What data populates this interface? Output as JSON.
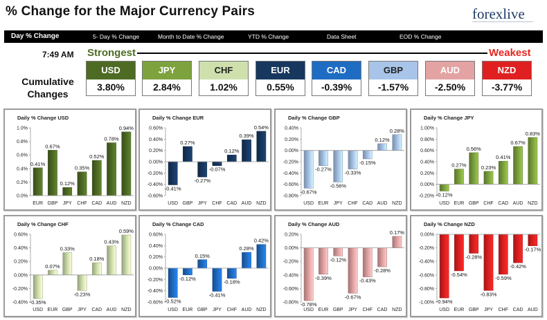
{
  "header": {
    "title": "% Change for the Major Currency Pairs",
    "logo_text": "forexlive"
  },
  "tabs": [
    {
      "label": "Day % Change",
      "active": true
    },
    {
      "label": "5- Day % Change",
      "active": false
    },
    {
      "label": "Month to Date % Change",
      "active": false
    },
    {
      "label": "YTD % Change",
      "active": false
    },
    {
      "label": "Data Sheet",
      "active": false
    },
    {
      "label": "EOD % Change",
      "active": false
    }
  ],
  "summary": {
    "time": "7:49 AM",
    "strongest_label": "Strongest",
    "weakest_label": "Weakest",
    "cumulative_label": "Cumulative Changes",
    "currencies": [
      {
        "code": "USD",
        "value": "3.80%",
        "color": "#4e6b24",
        "text_color": "#ffffff"
      },
      {
        "code": "JPY",
        "value": "2.84%",
        "color": "#7ea33e",
        "text_color": "#ffffff"
      },
      {
        "code": "CHF",
        "value": "1.02%",
        "color": "#cfe0ad",
        "text_color": "#222222"
      },
      {
        "code": "EUR",
        "value": "0.55%",
        "color": "#17375e",
        "text_color": "#ffffff"
      },
      {
        "code": "CAD",
        "value": "-0.39%",
        "color": "#1f6cc3",
        "text_color": "#ffffff"
      },
      {
        "code": "GBP",
        "value": "-1.57%",
        "color": "#a8c4e8",
        "text_color": "#222222"
      },
      {
        "code": "AUD",
        "value": "-2.50%",
        "color": "#e3a3a3",
        "text_color": "#ffffff"
      },
      {
        "code": "NZD",
        "value": "-3.77%",
        "color": "#e02020",
        "text_color": "#ffffff"
      }
    ]
  },
  "chart_data": [
    {
      "type": "bar",
      "title": "Daily % Change USD",
      "categories": [
        "EUR",
        "GBP",
        "JPY",
        "CHF",
        "CAD",
        "AUD",
        "NZD"
      ],
      "values": [
        0.41,
        0.67,
        0.12,
        0.35,
        0.52,
        0.78,
        0.94
      ],
      "labels": [
        "0.41%",
        "0.67%",
        "0.12%",
        "0.35%",
        "0.52%",
        "0.78%",
        "0.94%"
      ],
      "ylim": [
        0,
        1.0
      ],
      "yticks": [
        0,
        0.2,
        0.4,
        0.6,
        0.8,
        1.0
      ],
      "ytick_labels": [
        "0.0%",
        "0.2%",
        "0.4%",
        "0.6%",
        "0.8%",
        "1.0%"
      ],
      "color": "#4e6b24"
    },
    {
      "type": "bar",
      "title": "Daily % Change EUR",
      "categories": [
        "USD",
        "GBP",
        "JPY",
        "CHF",
        "CAD",
        "AUD",
        "NZD"
      ],
      "values": [
        -0.41,
        0.27,
        -0.27,
        -0.07,
        0.12,
        0.39,
        0.54
      ],
      "labels": [
        "-0.41%",
        "0.27%",
        "-0.27%",
        "-0.07%",
        "0.12%",
        "0.39%",
        "0.54%"
      ],
      "ylim": [
        -0.6,
        0.6
      ],
      "yticks": [
        -0.6,
        -0.4,
        -0.2,
        0,
        0.2,
        0.4,
        0.6
      ],
      "ytick_labels": [
        "-0.60%",
        "-0.40%",
        "-0.20%",
        "0.00%",
        "0.20%",
        "0.40%",
        "0.60%"
      ],
      "color": "#17375e"
    },
    {
      "type": "bar",
      "title": "Daily % Change GBP",
      "categories": [
        "USD",
        "EUR",
        "JPY",
        "CHF",
        "CAD",
        "AUD",
        "NZD"
      ],
      "values": [
        -0.67,
        -0.27,
        -0.56,
        -0.33,
        -0.15,
        0.12,
        0.28
      ],
      "labels": [
        "-0.67%",
        "-0.27%",
        "-0.56%",
        "-0.33%",
        "-0.15%",
        "0.12%",
        "0.28%"
      ],
      "ylim": [
        -0.8,
        0.4
      ],
      "yticks": [
        -0.8,
        -0.6,
        -0.4,
        -0.2,
        0,
        0.2,
        0.4
      ],
      "ytick_labels": [
        "-0.80%",
        "-0.60%",
        "-0.40%",
        "-0.20%",
        "0.00%",
        "0.20%",
        "0.40%"
      ],
      "color": "#a8c4e8"
    },
    {
      "type": "bar",
      "title": "Daily % Change JPY",
      "categories": [
        "USD",
        "EUR",
        "GBP",
        "CHF",
        "CAD",
        "AUD",
        "NZD"
      ],
      "values": [
        -0.12,
        0.27,
        0.56,
        0.23,
        0.41,
        0.67,
        0.83
      ],
      "labels": [
        "-0.12%",
        "0.27%",
        "0.56%",
        "0.23%",
        "0.41%",
        "0.67%",
        "0.83%"
      ],
      "ylim": [
        -0.2,
        1.0
      ],
      "yticks": [
        -0.2,
        0,
        0.2,
        0.4,
        0.6,
        0.8,
        1.0
      ],
      "ytick_labels": [
        "-0.20%",
        "0.00%",
        "0.20%",
        "0.40%",
        "0.60%",
        "0.80%",
        "1.00%"
      ],
      "color": "#7ea33e"
    },
    {
      "type": "bar",
      "title": "Daily % Change CHF",
      "categories": [
        "USD",
        "EUR",
        "GBP",
        "JPY",
        "CAD",
        "AUD",
        "NZD"
      ],
      "values": [
        -0.35,
        0.07,
        0.33,
        -0.23,
        0.18,
        0.43,
        0.59
      ],
      "labels": [
        "-0.35%",
        "0.07%",
        "0.33%",
        "-0.23%",
        "0.18%",
        "0.43%",
        "0.59%"
      ],
      "ylim": [
        -0.4,
        0.6
      ],
      "yticks": [
        -0.4,
        -0.2,
        0,
        0.2,
        0.4,
        0.6
      ],
      "ytick_labels": [
        "-0.40%",
        "-0.20%",
        "0.00%",
        "0.20%",
        "0.40%",
        "0.60%"
      ],
      "color": "#cfe0ad"
    },
    {
      "type": "bar",
      "title": "Daily % Change CAD",
      "categories": [
        "USD",
        "EUR",
        "GBP",
        "JPY",
        "CHF",
        "AUD",
        "NZD"
      ],
      "values": [
        -0.52,
        -0.12,
        0.15,
        -0.41,
        -0.18,
        0.28,
        0.42
      ],
      "labels": [
        "-0.52%",
        "-0.12%",
        "0.15%",
        "-0.41%",
        "-0.18%",
        "0.28%",
        "0.42%"
      ],
      "ylim": [
        -0.6,
        0.6
      ],
      "yticks": [
        -0.6,
        -0.4,
        -0.2,
        0,
        0.2,
        0.4,
        0.6
      ],
      "ytick_labels": [
        "-0.60%",
        "-0.40%",
        "-0.20%",
        "0.00%",
        "0.20%",
        "0.40%",
        "0.60%"
      ],
      "color": "#1f6cc3"
    },
    {
      "type": "bar",
      "title": "Daily % Change AUD",
      "categories": [
        "USD",
        "EUR",
        "GBP",
        "JPY",
        "CHF",
        "CAD",
        "NZD"
      ],
      "values": [
        -0.78,
        -0.39,
        -0.12,
        -0.67,
        -0.43,
        -0.28,
        0.17
      ],
      "labels": [
        "-0.78%",
        "-0.39%",
        "-0.12%",
        "-0.67%",
        "-0.43%",
        "-0.28%",
        "0.17%"
      ],
      "ylim": [
        -0.8,
        0.2
      ],
      "yticks": [
        -0.8,
        -0.6,
        -0.4,
        -0.2,
        0,
        0.2
      ],
      "ytick_labels": [
        "-0.80%",
        "-0.60%",
        "-0.40%",
        "-0.20%",
        "0.00%",
        "0.20%"
      ],
      "color": "#e3a3a3"
    },
    {
      "type": "bar",
      "title": "Daily % Change NZD",
      "categories": [
        "USD",
        "EUR",
        "GBP",
        "JPY",
        "CHF",
        "CAD",
        "AUD"
      ],
      "values": [
        -0.94,
        -0.54,
        -0.28,
        -0.83,
        -0.59,
        -0.42,
        -0.17
      ],
      "labels": [
        "-0.94%",
        "-0.54%",
        "-0.28%",
        "-0.83%",
        "-0.59%",
        "-0.42%",
        "-0.17%"
      ],
      "ylim": [
        -1.0,
        0
      ],
      "yticks": [
        -1.0,
        -0.8,
        -0.6,
        -0.4,
        -0.2,
        0
      ],
      "ytick_labels": [
        "-1.00%",
        "-0.80%",
        "-0.60%",
        "-0.40%",
        "-0.20%",
        "0.00%"
      ],
      "color": "#e02020"
    }
  ]
}
